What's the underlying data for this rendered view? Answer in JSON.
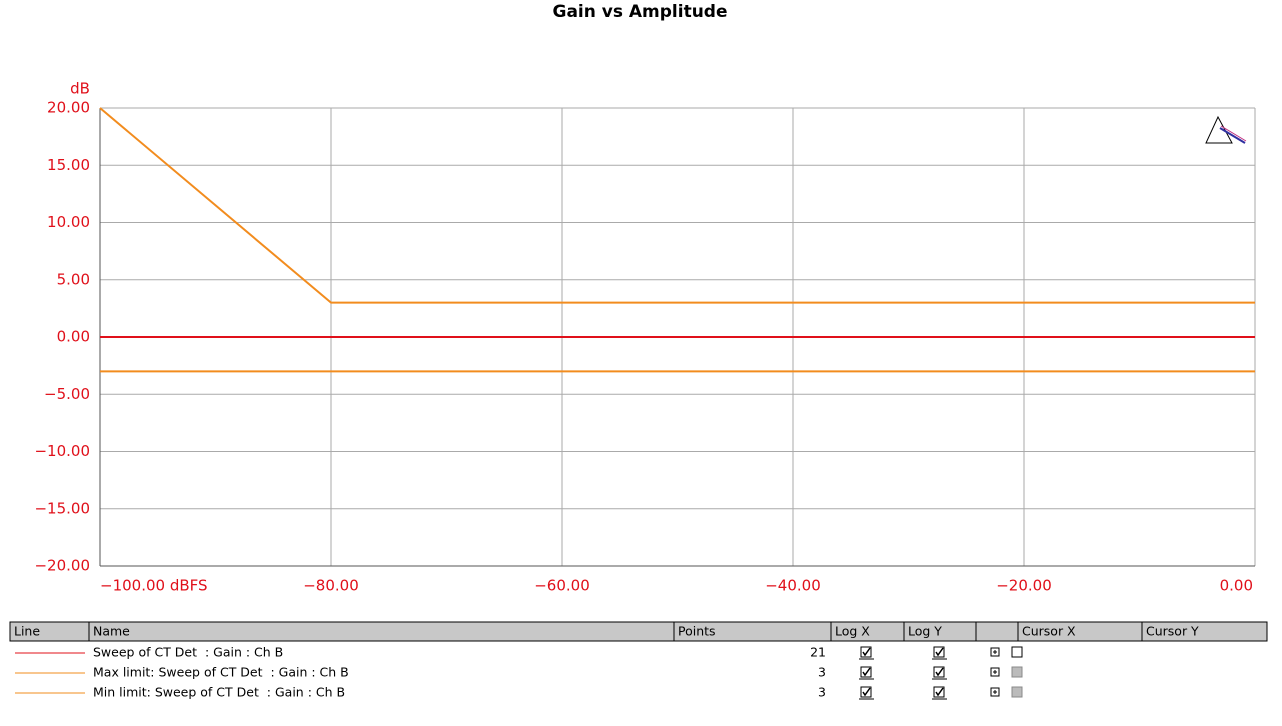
{
  "chart_data": {
    "type": "line",
    "title": "Gain vs Amplitude",
    "y_label": "dB",
    "xlim": [
      -100,
      0
    ],
    "ylim": [
      -20,
      20
    ],
    "xticks": [
      {
        "value": -100,
        "label": "−100.00 dBFS"
      },
      {
        "value": -80,
        "label": "−80.00"
      },
      {
        "value": -60,
        "label": "−60.00"
      },
      {
        "value": -40,
        "label": "−40.00"
      },
      {
        "value": -20,
        "label": "−20.00"
      },
      {
        "value": 0,
        "label": "0.00"
      }
    ],
    "yticks": [
      {
        "value": 20,
        "label": "20.00"
      },
      {
        "value": 15,
        "label": "15.00"
      },
      {
        "value": 10,
        "label": "10.00"
      },
      {
        "value": 5,
        "label": "5.00"
      },
      {
        "value": 0,
        "label": "0.00"
      },
      {
        "value": -5,
        "label": "−5.00"
      },
      {
        "value": -10,
        "label": "−10.00"
      },
      {
        "value": -15,
        "label": "−15.00"
      },
      {
        "value": -20,
        "label": "−20.00"
      }
    ],
    "grid": true,
    "series": [
      {
        "name": "Sweep of CT Det  : Gain : Ch B",
        "color": "#e0101a",
        "x": [
          -100,
          -95,
          -90,
          -85,
          -80,
          -75,
          -70,
          -65,
          -60,
          -55,
          -50,
          -45,
          -40,
          -35,
          -30,
          -25,
          -20,
          -15,
          -10,
          -5,
          0
        ],
        "values": [
          0,
          0,
          0,
          0,
          0,
          0,
          0,
          0,
          0,
          0,
          0,
          0,
          0,
          0,
          0,
          0,
          0,
          0,
          0,
          0,
          0
        ]
      },
      {
        "name": "Max limit: Sweep of CT Det  : Gain : Ch B",
        "color": "#f28c1e",
        "x": [
          -100,
          -80,
          0
        ],
        "values": [
          20,
          3,
          3
        ]
      },
      {
        "name": "Min limit: Sweep of CT Det  : Gain : Ch B",
        "color": "#f28c1e",
        "x": [
          -100,
          -80,
          0
        ],
        "values": [
          -3,
          -3,
          -3
        ]
      }
    ]
  },
  "legend_table": {
    "headers": [
      "Line",
      "Name",
      "Points",
      "Log X",
      "Log Y",
      "Cursor X",
      "Cursor Y"
    ],
    "rows": [
      {
        "points": 21,
        "log_x": true,
        "log_y": true,
        "cursor_x_enabled": true
      },
      {
        "points": 3,
        "log_x": true,
        "log_y": true,
        "cursor_x_enabled": false
      },
      {
        "points": 3,
        "log_x": true,
        "log_y": true,
        "cursor_x_enabled": false
      }
    ]
  }
}
